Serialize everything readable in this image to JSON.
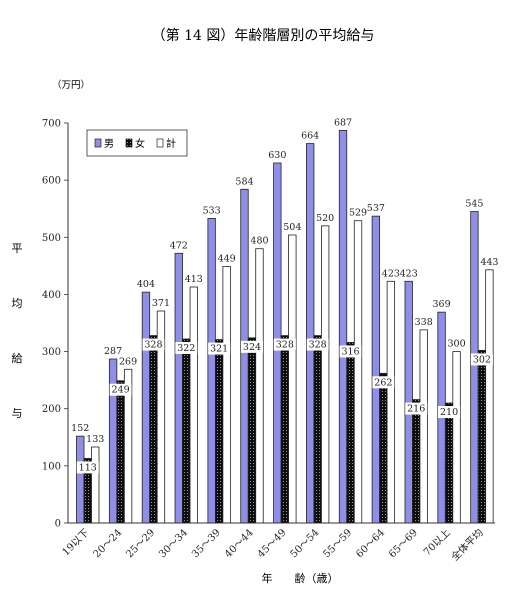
{
  "chart_data": {
    "type": "bar",
    "title": "（第 14 図）年齢階層別の平均給与",
    "unit_label": "（万円）",
    "ylabel_chars": [
      "平",
      "均",
      "給",
      "与"
    ],
    "xlabel": "年　　齢（歳）",
    "ylim": [
      0,
      700
    ],
    "yticks": [
      0,
      100,
      200,
      300,
      400,
      500,
      600,
      700
    ],
    "legend_position": "top-left",
    "grid": false,
    "categories": [
      "19以下",
      "20～24",
      "25～29",
      "30～34",
      "35～39",
      "40～44",
      "45～49",
      "50～54",
      "55～59",
      "60～64",
      "65～69",
      "70以上",
      "全体平均"
    ],
    "series": [
      {
        "name": "男",
        "pattern": "blue",
        "values": [
          152,
          287,
          404,
          472,
          533,
          584,
          630,
          664,
          687,
          537,
          423,
          369,
          545
        ]
      },
      {
        "name": "女",
        "pattern": "black-dotted",
        "values": [
          113,
          249,
          328,
          322,
          321,
          324,
          328,
          328,
          316,
          262,
          216,
          210,
          302
        ]
      },
      {
        "name": "計",
        "pattern": "white",
        "values": [
          133,
          269,
          371,
          413,
          449,
          480,
          504,
          520,
          529,
          423,
          338,
          300,
          443
        ]
      }
    ],
    "colors": {
      "male": "#8f8fe8",
      "female": "#111111",
      "total": "#ffffff",
      "axis": "#333333"
    }
  }
}
